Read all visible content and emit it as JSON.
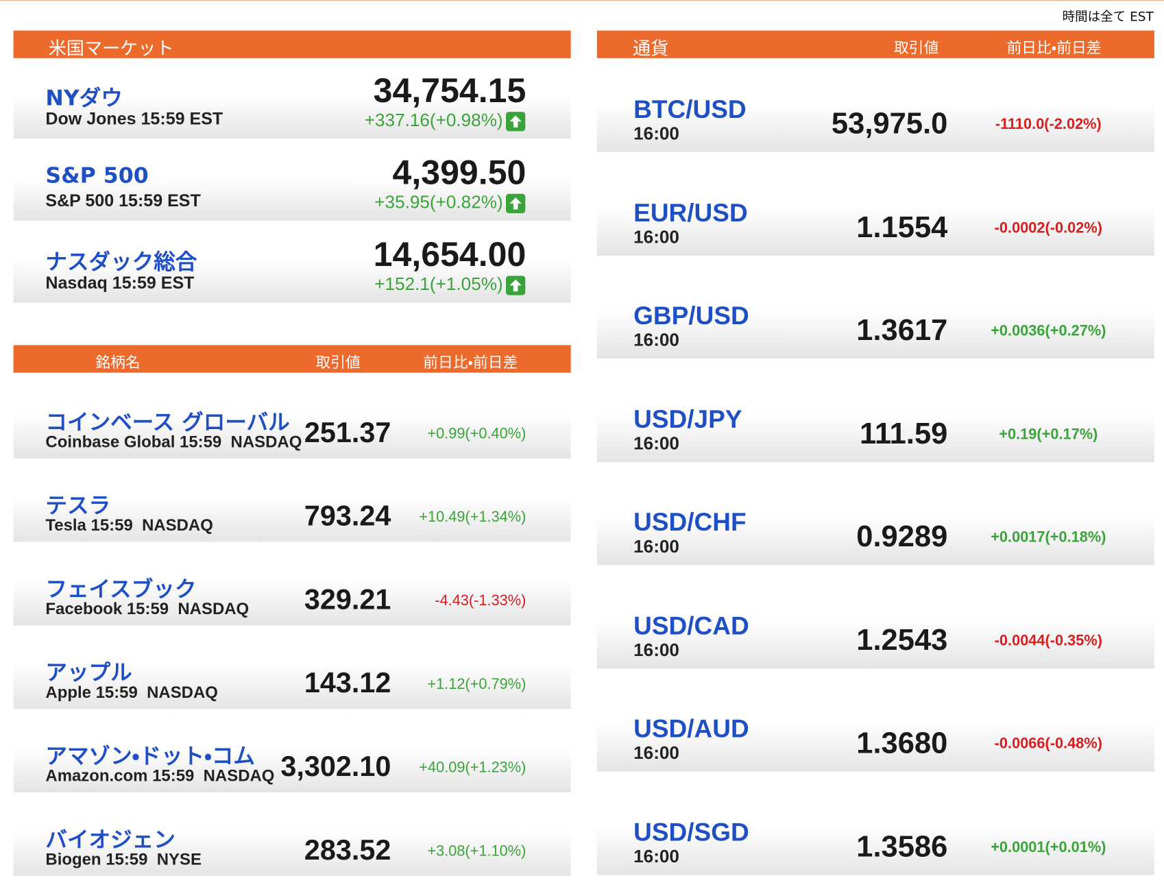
{
  "note": "時間は全て EST",
  "us_market": {
    "title": "米国マーケット",
    "rows": [
      {
        "name": "NYダウ",
        "sub": "Dow Jones 15:59 EST",
        "value": "34,754.15",
        "change": "+337.16(+0.98%)"
      },
      {
        "name": "S&P 500",
        "sub": "S&P 500 15:59 EST",
        "value": "4,399.50",
        "change": "+35.95(+0.82%)"
      },
      {
        "name": "ナスダック総合",
        "sub": "Nasdaq 15:59 EST",
        "value": "14,654.00",
        "change": "+152.1(+1.05%)"
      }
    ]
  },
  "stocks": {
    "columns": [
      "銘柄名",
      "取引値",
      "前日比・前日差"
    ],
    "rows": [
      {
        "name": "コインベース グローバル",
        "sub": "Coinbase Global 15:59  NASDAQ",
        "value": "251.37",
        "change": "+0.99(+0.40%)"
      },
      {
        "name": "テスラ",
        "sub": "Tesla 15:59  NASDAQ",
        "value": "793.24",
        "change": "+10.49(+1.34%)"
      },
      {
        "name": "フェイスブック",
        "sub": "Facebook 15:59  NASDAQ",
        "value": "329.21",
        "change": "-4.43(-1.33%)"
      },
      {
        "name": "アップル",
        "sub": "Apple 15:59  NASDAQ",
        "value": "143.12",
        "change": "+1.12(+0.79%)"
      },
      {
        "name": "アマゾン・ドット・コム",
        "sub": "Amazon.com 15:59  NASDAQ",
        "value": "3,302.10",
        "change": "+40.09(+1.23%)"
      },
      {
        "name": "バイオジェン",
        "sub": "Biogen 15:59  NYSE",
        "value": "283.52",
        "change": "+3.08(+1.10%)"
      }
    ]
  },
  "currencies": {
    "columns": [
      "通貨",
      "取引値",
      "前日比・前日差"
    ],
    "rows": [
      {
        "pair": "BTC/USD",
        "time": "16:00",
        "value": "53,975.0",
        "change": "-1110.0(-2.02%)"
      },
      {
        "pair": "EUR/USD",
        "time": "16:00",
        "value": "1.1554",
        "change": "-0.0002(-0.02%)"
      },
      {
        "pair": "GBP/USD",
        "time": "16:00",
        "value": "1.3617",
        "change": "+0.0036(+0.27%)"
      },
      {
        "pair": "USD/JPY",
        "time": "16:00",
        "value": "111.59",
        "change": "+0.19(+0.17%)"
      },
      {
        "pair": "USD/CHF",
        "time": "16:00",
        "value": "0.9289",
        "change": "+0.0017(+0.18%)"
      },
      {
        "pair": "USD/CAD",
        "time": "16:00",
        "value": "1.2543",
        "change": "-0.0044(-0.35%)"
      },
      {
        "pair": "USD/AUD",
        "time": "16:00",
        "value": "1.3680",
        "change": "-0.0066(-0.48%)"
      },
      {
        "pair": "USD/SGD",
        "time": "16:00",
        "value": "1.3586",
        "change": "+0.0001(+0.01%)"
      }
    ]
  }
}
